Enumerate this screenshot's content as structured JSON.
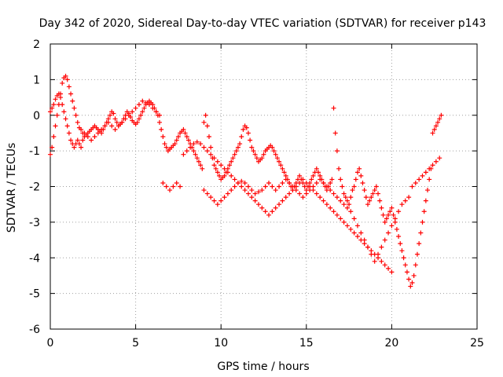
{
  "chart_data": {
    "type": "scatter",
    "title": "Day 342 of 2020, Sidereal Day-to-day VTEC variation (SDTVAR) for receiver p143",
    "xlabel": "GPS time / hours",
    "ylabel": "SDTVAR / TECUs",
    "xlim": [
      0,
      25
    ],
    "ylim": [
      -6,
      2
    ],
    "xticks": [
      "0",
      "5",
      "10",
      "15",
      "20",
      "25"
    ],
    "yticks": [
      "-6",
      "-5",
      "-4",
      "-3",
      "-2",
      "-1",
      "0",
      "1",
      "2"
    ],
    "grid": true,
    "marker": "+",
    "color": "#ff0000",
    "series": [
      {
        "name": "SDTVAR",
        "x": [
          0.0,
          0.1,
          0.2,
          0.3,
          0.4,
          0.5,
          0.6,
          0.7,
          0.8,
          0.9,
          1.0,
          1.1,
          1.2,
          1.3,
          1.4,
          1.5,
          1.6,
          1.7,
          1.8,
          1.9,
          2.0,
          2.1,
          2.2,
          2.3,
          2.4,
          2.5,
          2.6,
          2.7,
          2.8,
          2.9,
          3.0,
          3.1,
          3.2,
          3.3,
          3.4,
          3.5,
          3.6,
          3.7,
          3.8,
          3.9,
          4.0,
          4.1,
          4.2,
          4.3,
          4.4,
          4.5,
          4.6,
          4.7,
          4.8,
          4.9,
          5.0,
          5.1,
          5.2,
          5.3,
          5.4,
          5.5,
          5.6,
          5.7,
          5.8,
          5.9,
          6.0,
          6.1,
          6.2,
          6.3,
          6.4,
          6.5,
          6.6,
          6.7,
          6.8,
          6.9,
          7.0,
          7.1,
          7.2,
          7.3,
          7.4,
          7.5,
          7.6,
          7.7,
          7.8,
          7.9,
          8.0,
          8.1,
          8.2,
          8.3,
          8.4,
          8.5,
          8.6,
          8.7,
          8.8,
          8.9,
          9.0,
          9.1,
          9.2,
          9.3,
          9.4,
          9.5,
          9.6,
          9.7,
          9.8,
          9.9,
          10.0,
          10.1,
          10.2,
          10.3,
          10.4,
          10.5,
          10.6,
          10.7,
          10.8,
          10.9,
          11.0,
          11.1,
          11.2,
          11.3,
          11.4,
          11.5,
          11.6,
          11.7,
          11.8,
          11.9,
          12.0,
          12.1,
          12.2,
          12.3,
          12.4,
          12.5,
          12.6,
          12.7,
          12.8,
          12.9,
          13.0,
          13.1,
          13.2,
          13.3,
          13.4,
          13.5,
          13.6,
          13.7,
          13.8,
          13.9,
          14.0,
          14.1,
          14.2,
          14.3,
          14.4,
          14.5,
          14.6,
          14.7,
          14.8,
          14.9,
          15.0,
          15.1,
          15.2,
          15.3,
          15.4,
          15.5,
          15.6,
          15.7,
          15.8,
          15.9,
          16.0,
          16.1,
          16.2,
          16.3,
          16.4,
          16.5,
          16.6,
          16.7,
          16.8,
          16.9,
          17.0,
          17.1,
          17.2,
          17.3,
          17.4,
          17.5,
          17.6,
          17.7,
          17.8,
          17.9,
          18.0,
          18.1,
          18.2,
          18.3,
          18.4,
          18.5,
          18.6,
          18.7,
          18.8,
          18.9,
          19.0,
          19.1,
          19.2,
          19.3,
          19.4,
          19.5,
          19.6,
          19.7,
          19.8,
          19.9,
          20.0,
          20.1,
          20.2,
          20.3,
          20.4,
          20.5,
          20.6,
          20.7,
          20.8,
          20.9,
          21.0,
          21.1,
          21.2,
          21.3,
          21.4,
          21.5,
          21.6,
          21.7,
          21.8,
          21.9,
          22.0,
          22.1,
          22.2,
          22.3,
          22.4,
          22.5,
          22.6,
          22.7,
          22.8,
          22.9,
          0.0,
          0.1,
          0.2,
          0.3,
          0.4,
          0.5,
          0.6,
          0.7,
          0.8,
          0.9,
          1.0,
          1.1,
          1.2,
          1.3,
          1.4,
          1.5,
          1.6,
          1.7,
          1.8,
          1.9,
          2.0,
          2.2,
          2.4,
          2.6,
          2.8,
          3.0,
          3.2,
          3.4,
          3.6,
          3.8,
          4.0,
          4.2,
          4.4,
          4.6,
          4.8,
          5.0,
          5.2,
          5.4,
          5.6,
          5.8,
          6.0,
          6.2,
          6.4,
          6.6,
          6.8,
          7.0,
          7.2,
          7.4,
          7.6,
          9.0,
          9.2,
          9.4,
          9.6,
          9.8,
          10.0,
          10.2,
          10.4,
          10.6,
          10.8,
          11.0,
          11.2,
          11.4,
          11.6,
          11.8,
          12.0,
          12.2,
          12.4,
          12.6,
          12.8,
          13.0,
          13.2,
          13.4,
          13.6,
          13.8,
          14.0,
          14.2,
          14.4,
          14.6,
          14.8,
          15.0,
          15.2,
          15.4,
          15.6,
          15.8,
          16.0,
          16.2,
          16.4,
          16.6,
          16.8,
          17.0,
          17.2,
          17.4,
          17.6,
          17.8,
          18.0,
          18.2,
          18.4,
          18.6,
          18.8,
          19.0,
          19.2,
          19.4,
          19.6,
          19.8,
          20.0,
          20.2,
          20.4,
          20.6,
          20.8,
          21.0,
          21.2,
          21.4,
          21.6,
          21.8,
          22.0,
          22.2,
          22.4,
          22.6,
          22.8,
          7.8,
          8.0,
          8.2,
          8.4,
          8.6,
          8.8,
          9.0,
          9.2,
          9.4,
          9.6,
          9.8,
          10.0,
          10.2,
          10.4,
          10.6,
          10.8,
          11.0,
          11.2,
          11.4,
          11.6,
          11.8,
          12.0,
          12.2,
          12.4,
          12.6,
          12.8,
          13.0,
          13.2,
          13.4,
          13.6,
          13.8,
          14.0,
          14.2,
          14.4,
          14.6,
          14.8,
          15.0,
          15.2,
          15.4,
          15.6,
          15.8,
          16.0,
          16.2,
          16.4,
          16.6,
          16.8,
          17.0,
          17.2,
          17.4,
          17.6,
          17.8,
          18.0,
          18.2,
          18.4,
          18.6,
          18.8,
          19.0,
          19.2,
          19.4,
          19.6,
          19.8,
          20.0
        ],
        "y": [
          -1.1,
          -0.9,
          -0.6,
          -0.3,
          0.0,
          0.3,
          0.6,
          0.9,
          1.05,
          1.1,
          1.0,
          0.8,
          0.6,
          0.4,
          0.2,
          0.0,
          -0.2,
          -0.35,
          -0.4,
          -0.5,
          -0.6,
          -0.55,
          -0.5,
          -0.45,
          -0.4,
          -0.35,
          -0.3,
          -0.35,
          -0.4,
          -0.45,
          -0.5,
          -0.4,
          -0.3,
          -0.2,
          -0.1,
          0.0,
          0.1,
          0.05,
          -0.1,
          -0.2,
          -0.3,
          -0.25,
          -0.2,
          -0.1,
          0.0,
          0.1,
          0.05,
          -0.05,
          -0.15,
          -0.2,
          -0.25,
          -0.2,
          -0.1,
          0.0,
          0.1,
          0.2,
          0.3,
          0.35,
          0.4,
          0.35,
          0.3,
          0.2,
          0.1,
          0.0,
          -0.2,
          -0.4,
          -0.6,
          -0.8,
          -0.9,
          -1.0,
          -0.95,
          -0.9,
          -0.85,
          -0.8,
          -0.7,
          -0.6,
          -0.5,
          -0.45,
          -0.4,
          -0.5,
          -0.6,
          -0.7,
          -0.8,
          -0.9,
          -1.0,
          -1.1,
          -1.2,
          -1.3,
          -1.4,
          -1.5,
          -0.2,
          0.0,
          -0.3,
          -0.6,
          -0.9,
          -1.2,
          -1.4,
          -1.5,
          -1.6,
          -1.7,
          -1.8,
          -1.75,
          -1.7,
          -1.6,
          -1.5,
          -1.4,
          -1.3,
          -1.2,
          -1.1,
          -1.0,
          -0.9,
          -0.8,
          -0.6,
          -0.4,
          -0.3,
          -0.35,
          -0.5,
          -0.7,
          -0.9,
          -1.0,
          -1.1,
          -1.2,
          -1.3,
          -1.25,
          -1.2,
          -1.1,
          -1.0,
          -0.95,
          -0.9,
          -0.85,
          -0.9,
          -1.0,
          -1.1,
          -1.2,
          -1.3,
          -1.4,
          -1.5,
          -1.6,
          -1.7,
          -1.8,
          -1.9,
          -2.0,
          -2.1,
          -2.0,
          -1.9,
          -1.8,
          -1.7,
          -1.8,
          -1.9,
          -2.0,
          -2.1,
          -2.0,
          -1.9,
          -1.8,
          -1.7,
          -1.6,
          -1.5,
          -1.6,
          -1.7,
          -1.8,
          -1.9,
          -2.0,
          -2.1,
          -2.0,
          -1.9,
          -1.8,
          0.2,
          -0.5,
          -1.0,
          -1.5,
          -1.8,
          -2.0,
          -2.2,
          -2.3,
          -2.4,
          -2.5,
          -2.3,
          -2.1,
          -2.0,
          -1.8,
          -1.6,
          -1.5,
          -1.7,
          -1.9,
          -2.1,
          -2.3,
          -2.5,
          -2.4,
          -2.3,
          -2.2,
          -2.1,
          -2.0,
          -2.2,
          -2.4,
          -2.6,
          -2.8,
          -3.0,
          -2.9,
          -2.8,
          -2.7,
          -2.6,
          -2.8,
          -3.0,
          -3.2,
          -3.4,
          -3.6,
          -3.8,
          -4.0,
          -4.2,
          -4.4,
          -4.6,
          -4.8,
          -4.7,
          -4.5,
          -4.2,
          -3.9,
          -3.6,
          -3.3,
          -3.0,
          -2.7,
          -2.4,
          -2.1,
          -1.8,
          -1.5,
          -0.5,
          -0.4,
          -0.3,
          -0.2,
          -0.1,
          0.0,
          0.1,
          0.2,
          0.3,
          0.45,
          0.55,
          0.6,
          0.5,
          0.3,
          0.1,
          -0.1,
          -0.3,
          -0.5,
          -0.7,
          -0.8,
          -0.9,
          -0.8,
          -0.7,
          -0.8,
          -0.9,
          -0.7,
          -0.5,
          -0.6,
          -0.7,
          -0.6,
          -0.5,
          -0.4,
          -0.3,
          -0.2,
          -0.3,
          -0.4,
          -0.3,
          -0.2,
          -0.1,
          0.0,
          0.1,
          0.2,
          0.3,
          0.4,
          0.35,
          0.3,
          0.2,
          0.1,
          0.0,
          -1.9,
          -2.0,
          -2.1,
          -2.0,
          -1.9,
          -2.0,
          -2.1,
          -2.2,
          -2.3,
          -2.4,
          -2.5,
          -2.4,
          -2.3,
          -2.2,
          -2.1,
          -2.0,
          -1.9,
          -1.85,
          -1.9,
          -2.0,
          -2.1,
          -2.2,
          -2.15,
          -2.1,
          -2.0,
          -1.9,
          -2.0,
          -2.1,
          -2.0,
          -1.9,
          -1.8,
          -1.9,
          -2.0,
          -2.1,
          -2.2,
          -2.3,
          -2.2,
          -2.1,
          -2.0,
          -1.9,
          -1.8,
          -1.9,
          -2.0,
          -2.1,
          -2.2,
          -2.3,
          -2.4,
          -2.5,
          -2.6,
          -2.7,
          -2.9,
          -3.1,
          -3.3,
          -3.5,
          -3.7,
          -3.9,
          -4.1,
          -3.9,
          -3.7,
          -3.5,
          -3.3,
          -3.1,
          -2.9,
          -2.7,
          -2.5,
          -2.4,
          -2.3,
          -2.0,
          -1.9,
          -1.8,
          -1.7,
          -1.6,
          -1.5,
          -1.4,
          -1.3,
          -1.2,
          -1.1,
          -1.0,
          -0.9,
          -0.8,
          -0.75,
          -0.8,
          -0.9,
          -1.0,
          -1.1,
          -1.2,
          -1.3,
          -1.4,
          -1.5,
          -1.6,
          -1.7,
          -1.8,
          -1.9,
          -2.0,
          -2.1,
          -2.2,
          -2.3,
          -2.4,
          -2.5,
          -2.6,
          -2.7,
          -2.8,
          -2.7,
          -2.6,
          -2.5,
          -2.4,
          -2.3,
          -2.2,
          -2.1,
          -2.0,
          -1.9,
          -1.8,
          -1.9,
          -2.0,
          -2.1,
          -2.2,
          -2.3,
          -2.4,
          -2.5,
          -2.6,
          -2.7,
          -2.8,
          -2.9,
          -3.0,
          -3.1,
          -3.2,
          -3.3,
          -3.4,
          -3.5,
          -3.6,
          -3.7,
          -3.8,
          -3.9,
          -4.0,
          -4.1,
          -4.2,
          -4.3,
          -4.4
        ]
      }
    ]
  }
}
